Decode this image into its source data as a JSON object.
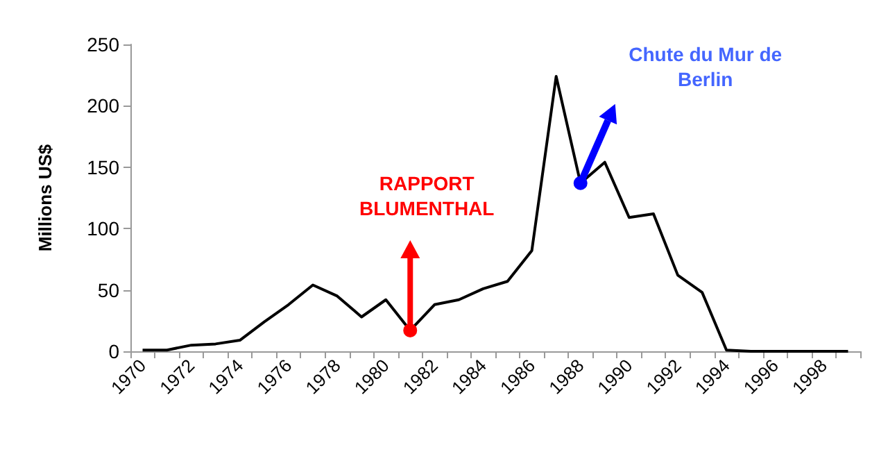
{
  "chart_data": {
    "type": "line",
    "ylabel": "Millions US$",
    "categories": [
      "1970",
      null,
      "1972",
      null,
      "1974",
      null,
      "1976",
      null,
      "1978",
      null,
      "1980",
      null,
      "1982",
      null,
      "1984",
      null,
      "1986",
      null,
      "1988",
      null,
      "1990",
      null,
      "1992",
      null,
      "1994",
      null,
      "1996",
      null,
      "1998",
      null
    ],
    "series": [
      {
        "color": "#000000",
        "values": [
          1,
          1,
          5,
          6,
          9,
          24,
          38,
          54,
          45,
          28,
          42,
          17,
          38,
          42,
          51,
          57,
          82,
          224,
          137,
          154,
          109,
          112,
          62,
          48,
          1,
          0,
          0,
          0,
          0,
          0
        ]
      }
    ],
    "ylim": [
      0,
      250
    ],
    "yticks": [
      0,
      50,
      100,
      150,
      200,
      250
    ],
    "grid": false,
    "marker": "none",
    "line_style": "solid",
    "annotations": [
      "RAPPORT BLUMENTHAL",
      "Chute du Mur de Berlin"
    ]
  }
}
